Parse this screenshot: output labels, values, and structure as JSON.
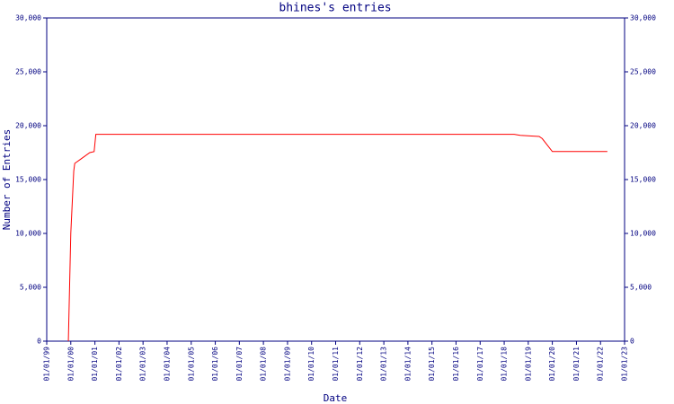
{
  "chart_data": {
    "type": "line",
    "title": "bhines's entries",
    "x_label": "Date",
    "y_label": "Number of Entries",
    "x": [
      "1999-11-25",
      "2000-01-01",
      "2000-02-15",
      "2000-03-01",
      "2000-06-01",
      "2000-10-15",
      "2000-12-20",
      "2001-01-15",
      "2018-06-01",
      "2018-09-01",
      "2019-06-15",
      "2019-08-01",
      "2020-01-01",
      "2022-04-15"
    ],
    "series": [
      {
        "name": "entries",
        "color": "#ff0000",
        "values": [
          0,
          10000,
          15800,
          16500,
          16900,
          17500,
          17600,
          19200,
          19200,
          19100,
          19000,
          18800,
          17600,
          17600
        ]
      }
    ],
    "xlim": [
      "1999-01-01",
      "2023-01-01"
    ],
    "xticks": [
      {
        "value": "1999-01-01",
        "label": "01/01/99"
      },
      {
        "value": "2000-01-01",
        "label": "01/01/00"
      },
      {
        "value": "2001-01-01",
        "label": "01/01/01"
      },
      {
        "value": "2002-01-01",
        "label": "01/01/02"
      },
      {
        "value": "2003-01-01",
        "label": "01/01/03"
      },
      {
        "value": "2004-01-01",
        "label": "01/01/04"
      },
      {
        "value": "2005-01-01",
        "label": "01/01/05"
      },
      {
        "value": "2006-01-01",
        "label": "01/01/06"
      },
      {
        "value": "2007-01-01",
        "label": "01/01/07"
      },
      {
        "value": "2008-01-01",
        "label": "01/01/08"
      },
      {
        "value": "2009-01-01",
        "label": "01/01/09"
      },
      {
        "value": "2010-01-01",
        "label": "01/01/10"
      },
      {
        "value": "2011-01-01",
        "label": "01/01/11"
      },
      {
        "value": "2012-01-01",
        "label": "01/01/12"
      },
      {
        "value": "2013-01-01",
        "label": "01/01/13"
      },
      {
        "value": "2014-01-01",
        "label": "01/01/14"
      },
      {
        "value": "2015-01-01",
        "label": "01/01/15"
      },
      {
        "value": "2016-01-01",
        "label": "01/01/16"
      },
      {
        "value": "2017-01-01",
        "label": "01/01/17"
      },
      {
        "value": "2018-01-01",
        "label": "01/01/18"
      },
      {
        "value": "2019-01-01",
        "label": "01/01/19"
      },
      {
        "value": "2020-01-01",
        "label": "01/01/20"
      },
      {
        "value": "2021-01-01",
        "label": "01/01/21"
      },
      {
        "value": "2022-01-01",
        "label": "01/01/22"
      },
      {
        "value": "2023-01-01",
        "label": "01/01/23"
      }
    ],
    "ylim": [
      0,
      30000
    ],
    "yticks": [
      0,
      {
        "value": 5000,
        "label": "5,000"
      },
      {
        "value": 10000,
        "label": "10,000"
      },
      {
        "value": 15000,
        "label": "15,000"
      },
      {
        "value": 20000,
        "label": "20,000"
      },
      {
        "value": 25000,
        "label": "25,000"
      },
      {
        "value": 30000,
        "label": "30,000"
      }
    ],
    "axis_color": "#000080",
    "grid": false
  }
}
